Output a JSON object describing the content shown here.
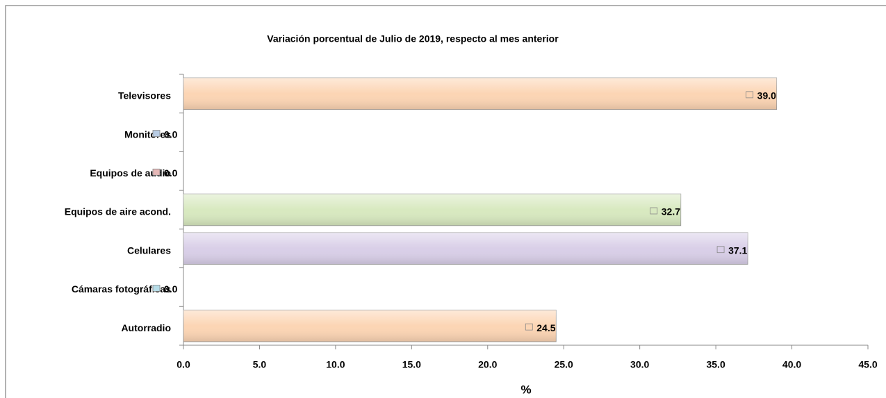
{
  "chart_data": {
    "type": "bar",
    "orientation": "horizontal",
    "title": "Variación porcentual de Julio  de 2019, respecto al mes anterior",
    "x_label": "%",
    "categories": [
      "Televisores",
      "Monitores",
      "Equipos de audio",
      "Equipos de aire acond.",
      "Celulares",
      "Cámaras fotográficas",
      "Autorradio"
    ],
    "values": [
      39.0,
      0.0,
      0.0,
      32.7,
      37.1,
      0.0,
      24.5
    ],
    "value_labels": [
      "39.0",
      "0.0",
      "0.0",
      "32.7",
      "37.1",
      "0.0",
      "24.5"
    ],
    "colors": [
      "#fcd5b4",
      "#b8cce4",
      "#e6b8b7",
      "#d8e9c0",
      "#d9cfe8",
      "#b7dde8",
      "#fcd5b4"
    ],
    "xlim": [
      0,
      45
    ],
    "xticks": [
      {
        "value": 0,
        "label": "0.0"
      },
      {
        "value": 5,
        "label": "5.0"
      },
      {
        "value": 10,
        "label": "10.0"
      },
      {
        "value": 15,
        "label": "15.0"
      },
      {
        "value": 20,
        "label": "20.0"
      },
      {
        "value": 25,
        "label": "25.0"
      },
      {
        "value": 30,
        "label": "30.0"
      },
      {
        "value": 35,
        "label": "35.0"
      },
      {
        "value": 40,
        "label": "40.0"
      },
      {
        "value": 45,
        "label": "45.0"
      }
    ]
  }
}
